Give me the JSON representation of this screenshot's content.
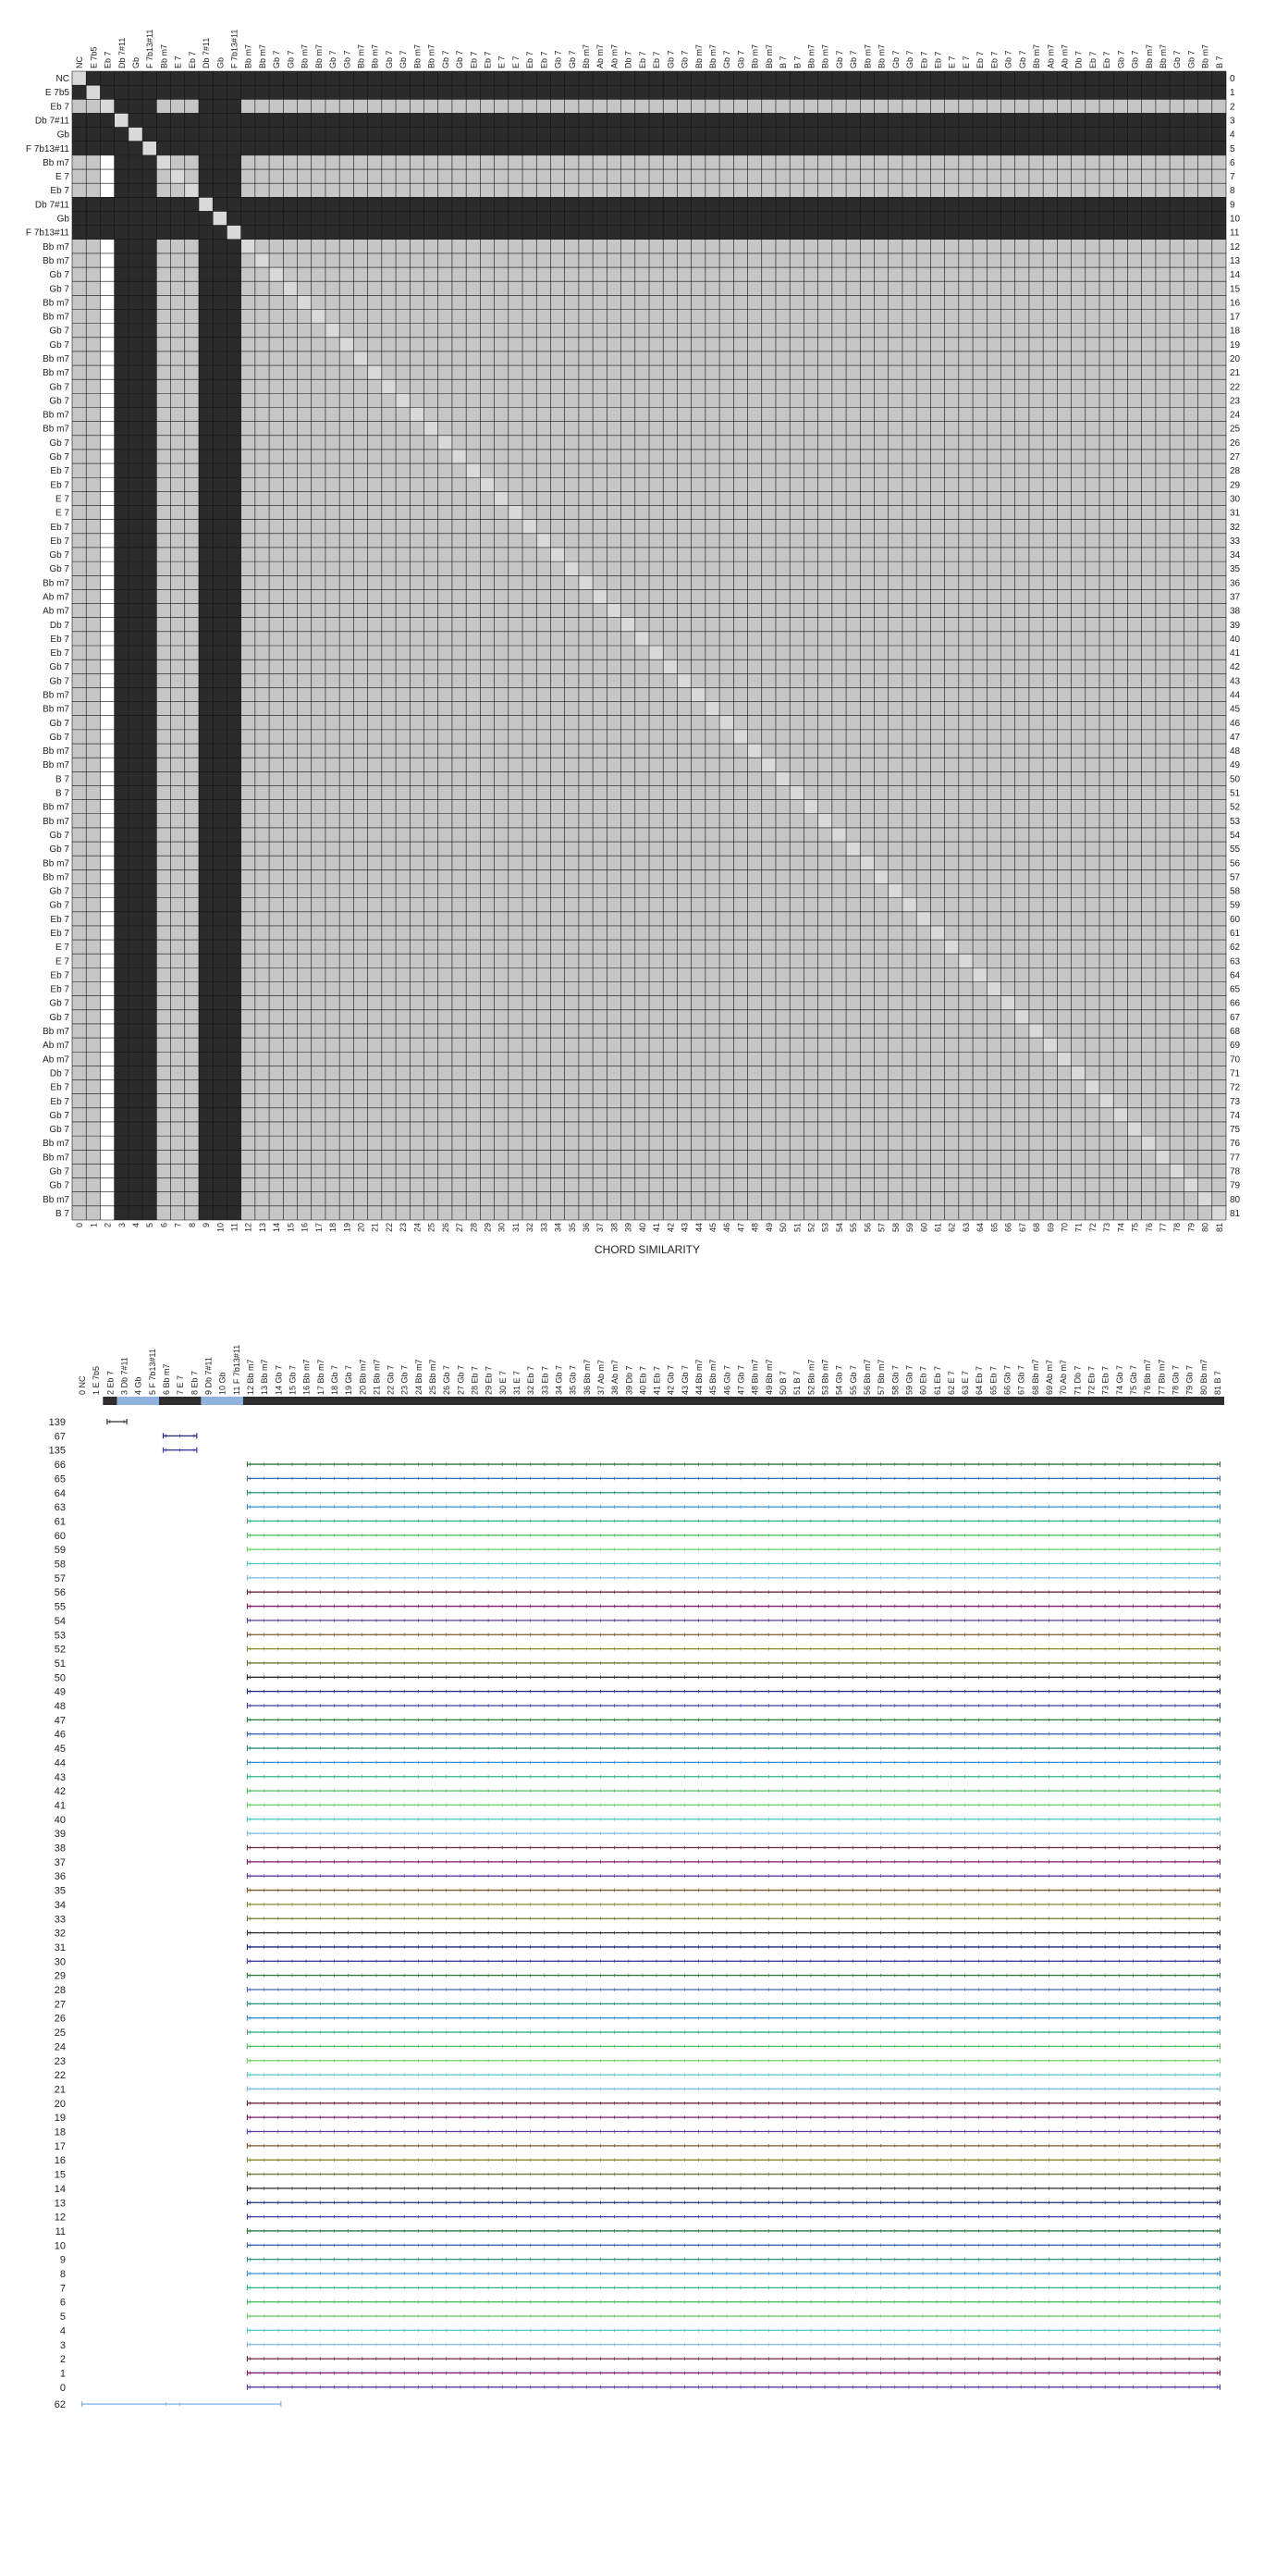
{
  "chart_data": [
    {
      "type": "heatmap",
      "title": "CHORD SIMILARITY",
      "chords": [
        "NC",
        "E 7b5",
        "Eb 7",
        "Db 7#11",
        "Gb",
        "F 7b13#11",
        "Bb m7",
        "E 7",
        "Eb 7",
        "Db 7#11",
        "Gb",
        "F 7b13#11",
        "Bb m7",
        "Bb m7",
        "Gb 7",
        "Gb 7",
        "Bb m7",
        "Bb m7",
        "Gb 7",
        "Gb 7",
        "Bb m7",
        "Bb m7",
        "Gb 7",
        "Gb 7",
        "Bb m7",
        "Bb m7",
        "Gb 7",
        "Gb 7",
        "Eb 7",
        "Eb 7",
        "E 7",
        "E 7",
        "Eb 7",
        "Eb 7",
        "Gb 7",
        "Gb 7",
        "Bb m7",
        "Ab m7",
        "Ab m7",
        "Db 7",
        "Eb 7",
        "Eb 7",
        "Gb 7",
        "Gb 7",
        "Bb m7",
        "Bb m7",
        "Gb 7",
        "Gb 7",
        "Bb m7",
        "Bb m7",
        "B 7",
        "B 7",
        "Bb m7",
        "Bb m7",
        "Gb 7",
        "Gb 7",
        "Bb m7",
        "Bb m7",
        "Gb 7",
        "Gb 7",
        "Eb 7",
        "Eb 7",
        "E 7",
        "E 7",
        "Eb 7",
        "Eb 7",
        "Gb 7",
        "Gb 7",
        "Bb m7",
        "Ab m7",
        "Ab m7",
        "Db 7",
        "Eb 7",
        "Eb 7",
        "Gb 7",
        "Gb 7",
        "Bb m7",
        "Bb m7",
        "Gb 7",
        "Gb 7",
        "Bb m7",
        "B 7"
      ],
      "indices_shown": true,
      "dark_columns": [
        3,
        4,
        5,
        9,
        10,
        11
      ],
      "dark_rows": [
        0,
        1,
        3,
        4,
        5,
        9,
        10,
        11
      ],
      "white_column": 2,
      "diagonal_marked": true,
      "colors": {
        "dark": "#2b2b2b",
        "light": "#c6c6c6",
        "diagonal": "#d9d9d9",
        "white": "#ffffff",
        "grid": "#111111"
      }
    },
    {
      "type": "line",
      "chart": "repetition-arcs",
      "row_labels": [
        "139",
        "67",
        "135",
        "66",
        "65",
        "64",
        "63",
        "61",
        "60",
        "59",
        "58",
        "57",
        "56",
        "55",
        "54",
        "53",
        "52",
        "51",
        "50",
        "49",
        "48",
        "47",
        "46",
        "45",
        "44",
        "43",
        "42",
        "41",
        "40",
        "39",
        "38",
        "37",
        "36",
        "35",
        "34",
        "33",
        "32",
        "31",
        "30",
        "29",
        "28",
        "27",
        "26",
        "25",
        "24",
        "23",
        "22",
        "21",
        "20",
        "19",
        "18",
        "17",
        "16",
        "15",
        "14",
        "13",
        "12",
        "11",
        "10",
        "9",
        "8",
        "7",
        "6",
        "5",
        "4",
        "3",
        "2",
        "1",
        "0"
      ],
      "extra_row_label": "62",
      "index_range": [
        0,
        81
      ],
      "segment_bar": [
        {
          "from": 2,
          "to": 2,
          "kind": "dark"
        },
        {
          "from": 3,
          "to": 5,
          "kind": "blue"
        },
        {
          "from": 6,
          "to": 8,
          "kind": "dark"
        },
        {
          "from": 9,
          "to": 11,
          "kind": "blue"
        },
        {
          "from": 12,
          "to": 81,
          "kind": "dark"
        }
      ],
      "palette": [
        "#2e2e2e",
        "#1f2a7a",
        "#3a3fa0",
        "#2c7a3a",
        "#3d6db0",
        "#2f8f7a",
        "#3a8fd0",
        "#2fb38a",
        "#4cc060",
        "#6fd06a",
        "#55c8c0",
        "#7fb8e0",
        "#6a2a3a",
        "#7a1a6a",
        "#5a3aa0",
        "#7a5a2a",
        "#8a8a30",
        "#6a7a3a"
      ],
      "extra_row_color": "#7ab0e0"
    }
  ]
}
